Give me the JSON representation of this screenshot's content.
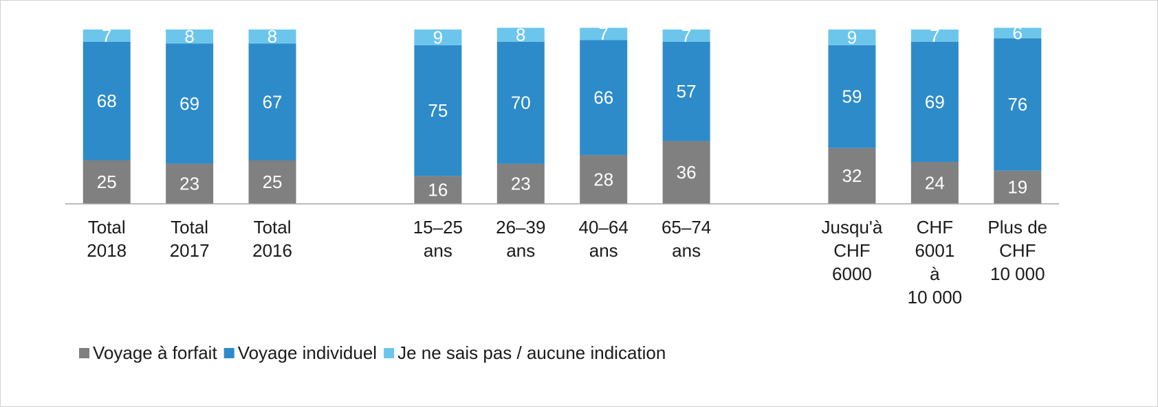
{
  "chart_data": {
    "type": "stacked_bar",
    "categories": [
      "Total\n2018",
      "Total\n2017",
      "Total\n2016",
      null,
      "15–25\nans",
      "26–39\nans",
      "40–64\nans",
      "65–74\nans",
      null,
      "Jusqu'à\nCHF\n6000",
      "CHF\n6001\nà\n10 000",
      "Plus de\nCHF\n10 000"
    ],
    "series": [
      {
        "name": "Voyage à forfait",
        "color": "#808080",
        "values": [
          25,
          23,
          25,
          null,
          16,
          23,
          28,
          36,
          null,
          32,
          24,
          19
        ]
      },
      {
        "name": "Voyage individuel",
        "color": "#2e8bc9",
        "values": [
          68,
          69,
          67,
          null,
          75,
          70,
          66,
          57,
          null,
          59,
          69,
          76
        ]
      },
      {
        "name": "Je ne sais pas / aucune indication",
        "color": "#6cc6ec",
        "values": [
          7,
          8,
          8,
          null,
          9,
          8,
          7,
          7,
          null,
          9,
          7,
          6
        ]
      }
    ],
    "ylim": [
      0,
      100
    ],
    "legend": "bottom"
  }
}
